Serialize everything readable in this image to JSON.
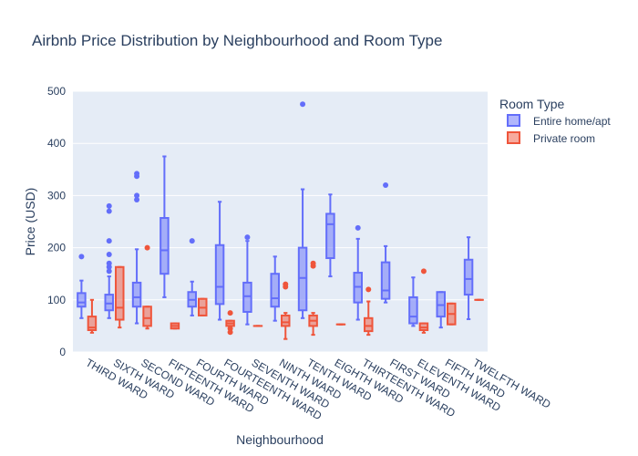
{
  "chart_data": {
    "type": "box",
    "title": "Airbnb Price Distribution by Neighbourhood and Room Type",
    "xlabel": "Neighbourhood",
    "ylabel": "Price (USD)",
    "ylim": [
      0,
      500
    ],
    "yticks": [
      0,
      100,
      200,
      300,
      400,
      500
    ],
    "grid": true,
    "legend": {
      "title": "Room Type",
      "placement": "top-right"
    },
    "categories": [
      "THIRD WARD",
      "SIXTH WARD",
      "SECOND WARD",
      "FIFTEENTH WARD",
      "FOURTH WARD",
      "FOURTEENTH WARD",
      "SEVENTH WARD",
      "NINTH WARD",
      "TENTH WARD",
      "EIGHTH WARD",
      "THIRTEENTH WARD",
      "FIRST WARD",
      "ELEVENTH WARD",
      "FIFTH WARD",
      "TWELFTH WARD"
    ],
    "series": [
      {
        "name": "Entire home/apt",
        "color": "#636efa",
        "fill": "rgba(99,110,250,0.5)",
        "boxes": [
          {
            "cat": "THIRD WARD",
            "min": 65,
            "q1": 87,
            "median": 95,
            "q3": 113,
            "max": 137,
            "outliers": [
              183
            ]
          },
          {
            "cat": "SIXTH WARD",
            "min": 65,
            "q1": 80,
            "median": 93,
            "q3": 110,
            "max": 145,
            "outliers": [
              155,
              163,
              170,
              187,
              213,
              270,
              280
            ]
          },
          {
            "cat": "SECOND WARD",
            "min": 55,
            "q1": 87,
            "median": 105,
            "q3": 133,
            "max": 197,
            "outliers": [
              292,
              300,
              337,
              342
            ]
          },
          {
            "cat": "FIFTEENTH WARD",
            "min": 105,
            "q1": 150,
            "median": 195,
            "q3": 257,
            "max": 375,
            "outliers": []
          },
          {
            "cat": "FOURTH WARD",
            "min": 70,
            "q1": 87,
            "median": 100,
            "q3": 115,
            "max": 135,
            "outliers": [
              213
            ]
          },
          {
            "cat": "FOURTEENTH WARD",
            "min": 62,
            "q1": 92,
            "median": 125,
            "q3": 205,
            "max": 288,
            "outliers": []
          },
          {
            "cat": "SEVENTH WARD",
            "min": 53,
            "q1": 77,
            "median": 107,
            "q3": 133,
            "max": 213,
            "outliers": [
              220
            ]
          },
          {
            "cat": "NINTH WARD",
            "min": 60,
            "q1": 87,
            "median": 103,
            "q3": 150,
            "max": 183,
            "outliers": []
          },
          {
            "cat": "TENTH WARD",
            "min": 65,
            "q1": 80,
            "median": 142,
            "q3": 200,
            "max": 312,
            "outliers": [
              475
            ]
          },
          {
            "cat": "EIGHTH WARD",
            "min": 145,
            "q1": 180,
            "median": 245,
            "q3": 265,
            "max": 302,
            "outliers": []
          },
          {
            "cat": "THIRTEENTH WARD",
            "min": 62,
            "q1": 95,
            "median": 125,
            "q3": 152,
            "max": 217,
            "outliers": [
              238
            ]
          },
          {
            "cat": "FIRST WARD",
            "min": 95,
            "q1": 102,
            "median": 118,
            "q3": 172,
            "max": 203,
            "outliers": [
              320
            ]
          },
          {
            "cat": "ELEVENTH WARD",
            "min": 50,
            "q1": 55,
            "median": 68,
            "q3": 105,
            "max": 143,
            "outliers": []
          },
          {
            "cat": "FIFTH WARD",
            "min": 47,
            "q1": 68,
            "median": 90,
            "q3": 115,
            "max": 115,
            "outliers": []
          },
          {
            "cat": "TWELFTH WARD",
            "min": 63,
            "q1": 110,
            "median": 140,
            "q3": 177,
            "max": 220,
            "outliers": []
          }
        ]
      },
      {
        "name": "Private room",
        "color": "#ef553b",
        "fill": "rgba(239,85,59,0.5)",
        "boxes": [
          {
            "cat": "THIRD WARD",
            "min": 37,
            "q1": 42,
            "median": 47,
            "q3": 68,
            "max": 100,
            "outliers": []
          },
          {
            "cat": "SIXTH WARD",
            "min": 47,
            "q1": 62,
            "median": 85,
            "q3": 163,
            "max": 163,
            "outliers": []
          },
          {
            "cat": "SECOND WARD",
            "min": 45,
            "q1": 50,
            "median": 65,
            "q3": 87,
            "max": 87,
            "outliers": [
              200
            ]
          },
          {
            "cat": "FIFTEENTH WARD",
            "min": 45,
            "q1": 45,
            "median": 50,
            "q3": 55,
            "max": 55,
            "outliers": []
          },
          {
            "cat": "FOURTH WARD",
            "min": 70,
            "q1": 70,
            "median": 85,
            "q3": 102,
            "max": 102,
            "outliers": []
          },
          {
            "cat": "FOURTEENTH WARD",
            "min": 50,
            "q1": 50,
            "median": 55,
            "q3": 60,
            "max": 60,
            "outliers": [
              38,
              45,
              75
            ]
          },
          {
            "cat": "SEVENTH WARD",
            "min": 50,
            "q1": 50,
            "median": 50,
            "q3": 50,
            "max": 50,
            "outliers": []
          },
          {
            "cat": "NINTH WARD",
            "min": 25,
            "q1": 50,
            "median": 57,
            "q3": 70,
            "max": 75,
            "outliers": [
              125,
              130
            ]
          },
          {
            "cat": "TENTH WARD",
            "min": 33,
            "q1": 50,
            "median": 60,
            "q3": 70,
            "max": 75,
            "outliers": [
              165,
              170
            ]
          },
          {
            "cat": "EIGHTH WARD",
            "min": 53,
            "q1": 53,
            "median": 53,
            "q3": 53,
            "max": 53,
            "outliers": []
          },
          {
            "cat": "THIRTEENTH WARD",
            "min": 33,
            "q1": 40,
            "median": 50,
            "q3": 65,
            "max": 97,
            "outliers": [
              120
            ]
          },
          {
            "cat": "FIRST WARD",
            "min": null,
            "q1": null,
            "median": null,
            "q3": null,
            "max": null,
            "outliers": []
          },
          {
            "cat": "ELEVENTH WARD",
            "min": 37,
            "q1": 42,
            "median": 47,
            "q3": 55,
            "max": 55,
            "outliers": [
              155
            ]
          },
          {
            "cat": "FIFTH WARD",
            "min": 53,
            "q1": 53,
            "median": 73,
            "q3": 93,
            "max": 93,
            "outliers": []
          },
          {
            "cat": "TWELFTH WARD",
            "min": 100,
            "q1": 100,
            "median": 100,
            "q3": 100,
            "max": 100,
            "outliers": []
          }
        ]
      }
    ]
  }
}
